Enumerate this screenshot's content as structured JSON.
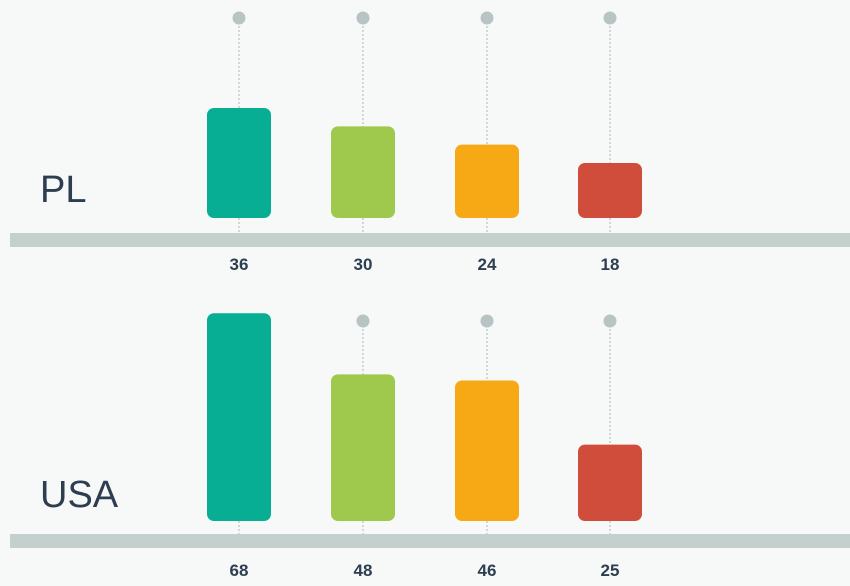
{
  "colors": {
    "background": "#f7f8f8",
    "baseline": "#c3d0ce",
    "guide": "#b8c4c4",
    "text": "#2d3e50",
    "bars": [
      "#07ae94",
      "#9fc94c",
      "#f6a915",
      "#d04d3b"
    ]
  },
  "chart_data": {
    "type": "bar",
    "title": "",
    "xlabel": "",
    "ylabel": "",
    "groups": [
      {
        "name": "PL",
        "values": [
          36,
          30,
          24,
          18
        ]
      },
      {
        "name": "USA",
        "values": [
          68,
          48,
          46,
          25
        ]
      }
    ]
  }
}
